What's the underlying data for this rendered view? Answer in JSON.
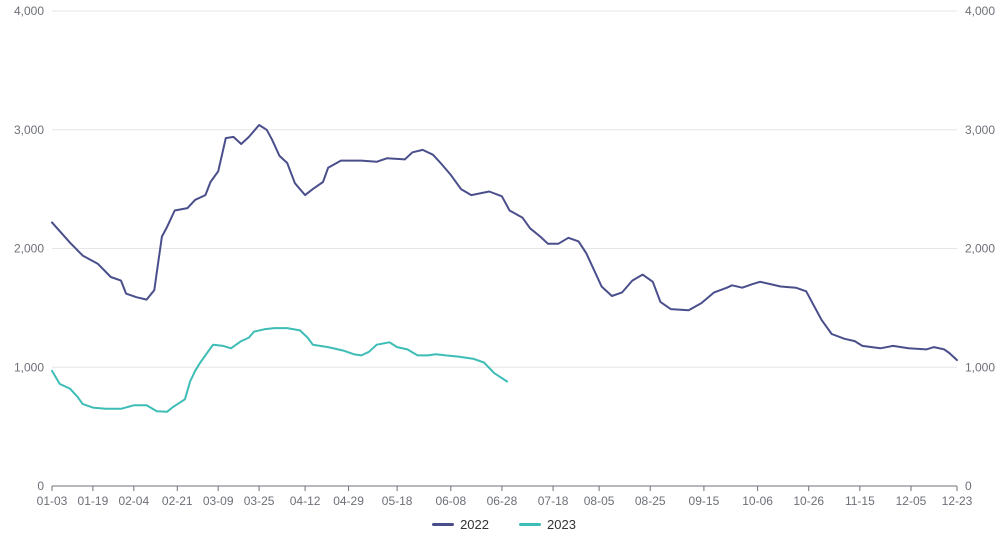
{
  "chart_data": {
    "type": "line",
    "title": "",
    "xlabel": "",
    "ylabel": "",
    "ylim": [
      0,
      4000
    ],
    "y_ticks": [
      "0",
      "1,000",
      "2,000",
      "3,000",
      "4,000"
    ],
    "y_tick_values": [
      0,
      1000,
      2000,
      3000,
      4000
    ],
    "x_tick_labels": [
      "01-03",
      "01-19",
      "02-04",
      "02-21",
      "03-09",
      "03-25",
      "04-12",
      "04-29",
      "05-18",
      "06-08",
      "06-28",
      "07-18",
      "08-05",
      "08-25",
      "09-15",
      "10-06",
      "10-26",
      "11-15",
      "12-05",
      "12-23"
    ],
    "x_range_days": [
      3,
      357
    ],
    "grid": "horizontal",
    "legend": "bottom-center",
    "series": [
      {
        "name": "2022",
        "color": "#4a4f8c",
        "points": [
          [
            "01-03",
            2220
          ],
          [
            "01-10",
            2050
          ],
          [
            "01-15",
            1940
          ],
          [
            "01-21",
            1870
          ],
          [
            "01-26",
            1760
          ],
          [
            "01-30",
            1730
          ],
          [
            "02-01",
            1620
          ],
          [
            "02-05",
            1590
          ],
          [
            "02-09",
            1570
          ],
          [
            "02-12",
            1650
          ],
          [
            "02-13",
            1800
          ],
          [
            "02-15",
            2100
          ],
          [
            "02-17",
            2180
          ],
          [
            "02-20",
            2320
          ],
          [
            "02-25",
            2340
          ],
          [
            "02-28",
            2410
          ],
          [
            "03-04",
            2450
          ],
          [
            "03-06",
            2560
          ],
          [
            "03-09",
            2650
          ],
          [
            "03-12",
            2930
          ],
          [
            "03-15",
            2940
          ],
          [
            "03-18",
            2880
          ],
          [
            "03-21",
            2940
          ],
          [
            "03-25",
            3040
          ],
          [
            "03-28",
            3000
          ],
          [
            "03-30",
            2920
          ],
          [
            "04-02",
            2780
          ],
          [
            "04-05",
            2720
          ],
          [
            "04-08",
            2550
          ],
          [
            "04-12",
            2450
          ],
          [
            "04-15",
            2500
          ],
          [
            "04-19",
            2560
          ],
          [
            "04-21",
            2680
          ],
          [
            "04-26",
            2740
          ],
          [
            "05-04",
            2740
          ],
          [
            "05-10",
            2730
          ],
          [
            "05-14",
            2760
          ],
          [
            "05-21",
            2750
          ],
          [
            "05-24",
            2810
          ],
          [
            "05-28",
            2830
          ],
          [
            "06-01",
            2790
          ],
          [
            "06-04",
            2720
          ],
          [
            "06-08",
            2620
          ],
          [
            "06-12",
            2500
          ],
          [
            "06-16",
            2450
          ],
          [
            "06-23",
            2480
          ],
          [
            "06-28",
            2440
          ],
          [
            "07-01",
            2320
          ],
          [
            "07-06",
            2260
          ],
          [
            "07-09",
            2170
          ],
          [
            "07-13",
            2100
          ],
          [
            "07-16",
            2040
          ],
          [
            "07-20",
            2040
          ],
          [
            "07-24",
            2090
          ],
          [
            "07-28",
            2060
          ],
          [
            "07-31",
            1960
          ],
          [
            "08-03",
            1820
          ],
          [
            "08-06",
            1680
          ],
          [
            "08-10",
            1600
          ],
          [
            "08-14",
            1630
          ],
          [
            "08-18",
            1730
          ],
          [
            "08-22",
            1780
          ],
          [
            "08-26",
            1720
          ],
          [
            "08-29",
            1550
          ],
          [
            "09-02",
            1490
          ],
          [
            "09-09",
            1480
          ],
          [
            "09-14",
            1540
          ],
          [
            "09-19",
            1630
          ],
          [
            "09-24",
            1670
          ],
          [
            "09-26",
            1690
          ],
          [
            "09-30",
            1670
          ],
          [
            "10-04",
            1700
          ],
          [
            "10-07",
            1720
          ],
          [
            "10-11",
            1700
          ],
          [
            "10-15",
            1680
          ],
          [
            "10-21",
            1670
          ],
          [
            "10-25",
            1640
          ],
          [
            "10-28",
            1520
          ],
          [
            "10-31",
            1400
          ],
          [
            "11-04",
            1280
          ],
          [
            "11-09",
            1240
          ],
          [
            "11-13",
            1220
          ],
          [
            "11-16",
            1180
          ],
          [
            "11-23",
            1160
          ],
          [
            "11-28",
            1180
          ],
          [
            "12-04",
            1160
          ],
          [
            "12-11",
            1150
          ],
          [
            "12-14",
            1170
          ],
          [
            "12-18",
            1150
          ],
          [
            "12-20",
            1120
          ],
          [
            "12-23",
            1060
          ]
        ]
      },
      {
        "name": "2023",
        "color": "#3dbdb5",
        "points": [
          [
            "01-03",
            970
          ],
          [
            "01-06",
            860
          ],
          [
            "01-10",
            820
          ],
          [
            "01-13",
            750
          ],
          [
            "01-15",
            690
          ],
          [
            "01-19",
            660
          ],
          [
            "01-24",
            650
          ],
          [
            "01-30",
            650
          ],
          [
            "02-04",
            680
          ],
          [
            "02-09",
            680
          ],
          [
            "02-13",
            630
          ],
          [
            "02-17",
            625
          ],
          [
            "02-19",
            660
          ],
          [
            "02-24",
            730
          ],
          [
            "02-26",
            880
          ],
          [
            "02-28",
            970
          ],
          [
            "03-02",
            1040
          ],
          [
            "03-05",
            1130
          ],
          [
            "03-07",
            1190
          ],
          [
            "03-11",
            1180
          ],
          [
            "03-14",
            1160
          ],
          [
            "03-18",
            1220
          ],
          [
            "03-21",
            1250
          ],
          [
            "03-23",
            1300
          ],
          [
            "03-27",
            1320
          ],
          [
            "03-31",
            1330
          ],
          [
            "04-05",
            1330
          ],
          [
            "04-10",
            1310
          ],
          [
            "04-13",
            1250
          ],
          [
            "04-15",
            1190
          ],
          [
            "04-21",
            1170
          ],
          [
            "04-27",
            1140
          ],
          [
            "05-01",
            1110
          ],
          [
            "05-04",
            1100
          ],
          [
            "05-07",
            1130
          ],
          [
            "05-10",
            1190
          ],
          [
            "05-15",
            1210
          ],
          [
            "05-18",
            1170
          ],
          [
            "05-22",
            1150
          ],
          [
            "05-26",
            1100
          ],
          [
            "05-30",
            1100
          ],
          [
            "06-02",
            1110
          ],
          [
            "06-06",
            1100
          ],
          [
            "06-11",
            1090
          ],
          [
            "06-17",
            1070
          ],
          [
            "06-21",
            1040
          ],
          [
            "06-25",
            950
          ],
          [
            "06-30",
            880
          ]
        ]
      }
    ]
  }
}
